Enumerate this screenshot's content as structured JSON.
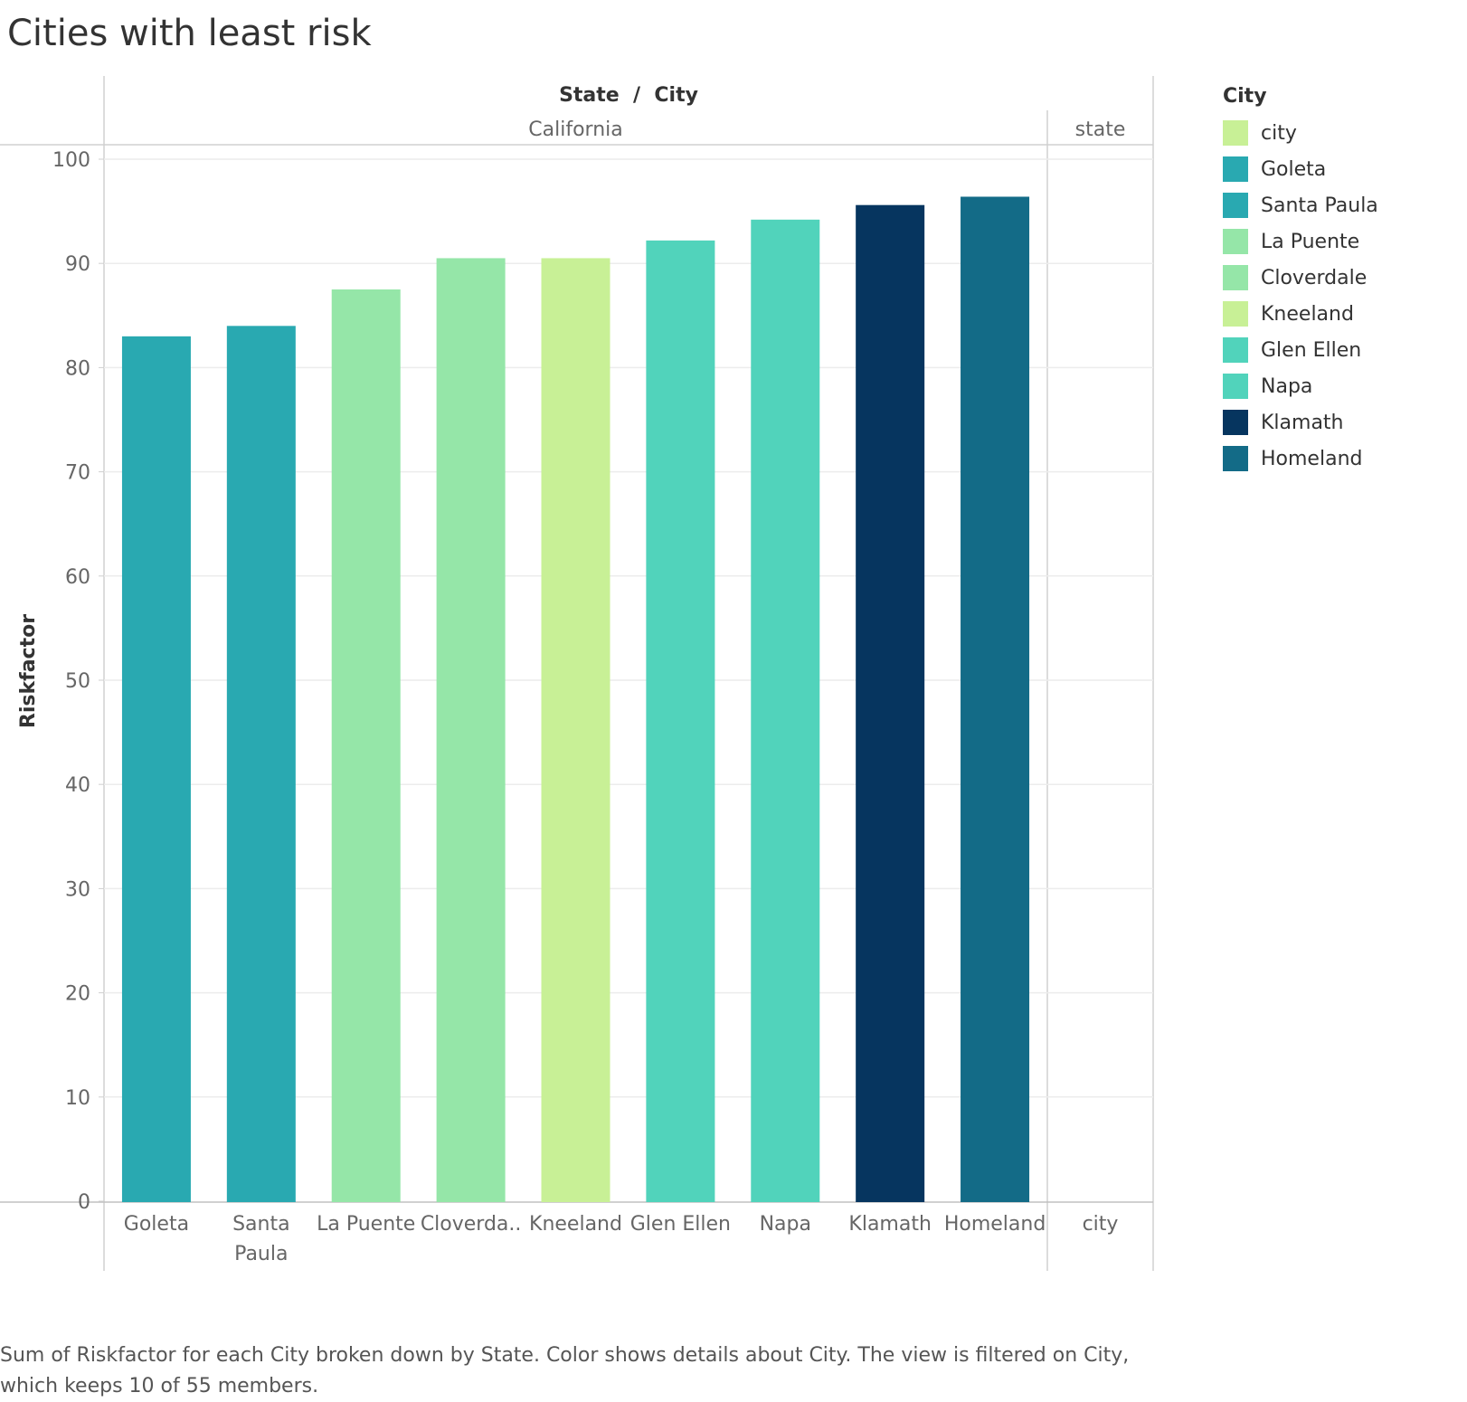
{
  "title": "Cities with least risk",
  "caption": "Sum of Riskfactor for each City broken down by State.  Color shows details about City. The view is filtered on City, which keeps 10 of 55 members.",
  "header": {
    "columns_title": "State  /  City",
    "groups": [
      "California",
      "state"
    ]
  },
  "legend": {
    "title": "City",
    "items": [
      {
        "label": "city",
        "color": "#c8f096"
      },
      {
        "label": "Goleta",
        "color": "#29a9b1"
      },
      {
        "label": "Santa Paula",
        "color": "#29a9b1"
      },
      {
        "label": "La Puente",
        "color": "#95e6a8"
      },
      {
        "label": "Cloverdale",
        "color": "#95e6a8"
      },
      {
        "label": "Kneeland",
        "color": "#c8f096"
      },
      {
        "label": "Glen Ellen",
        "color": "#51d3bb"
      },
      {
        "label": "Napa",
        "color": "#51d3bb"
      },
      {
        "label": "Klamath",
        "color": "#06355f"
      },
      {
        "label": "Homeland",
        "color": "#136b87"
      }
    ]
  },
  "chart_data": {
    "type": "bar",
    "title": "Cities with least risk",
    "ylabel": "Riskfactor",
    "xlabel": "State / City",
    "ylim": [
      0,
      100
    ],
    "yticks": [
      0,
      10,
      20,
      30,
      40,
      50,
      60,
      70,
      80,
      90,
      100
    ],
    "grid": true,
    "legend_position": "right",
    "groups": [
      {
        "name": "California",
        "categories": [
          "Goleta",
          "Santa Paula",
          "La Puente",
          "Cloverda..",
          "Kneeland",
          "Glen Ellen",
          "Napa",
          "Klamath",
          "Homeland"
        ],
        "values": [
          83,
          84,
          87.5,
          90.5,
          90.5,
          92.2,
          94.2,
          95.6,
          96.4
        ],
        "colors": [
          "#29a9b1",
          "#29a9b1",
          "#95e6a8",
          "#95e6a8",
          "#c8f096",
          "#51d3bb",
          "#51d3bb",
          "#06355f",
          "#136b87"
        ]
      },
      {
        "name": "state",
        "categories": [
          "city"
        ],
        "values": [
          null
        ],
        "colors": [
          "#c8f096"
        ]
      }
    ]
  }
}
